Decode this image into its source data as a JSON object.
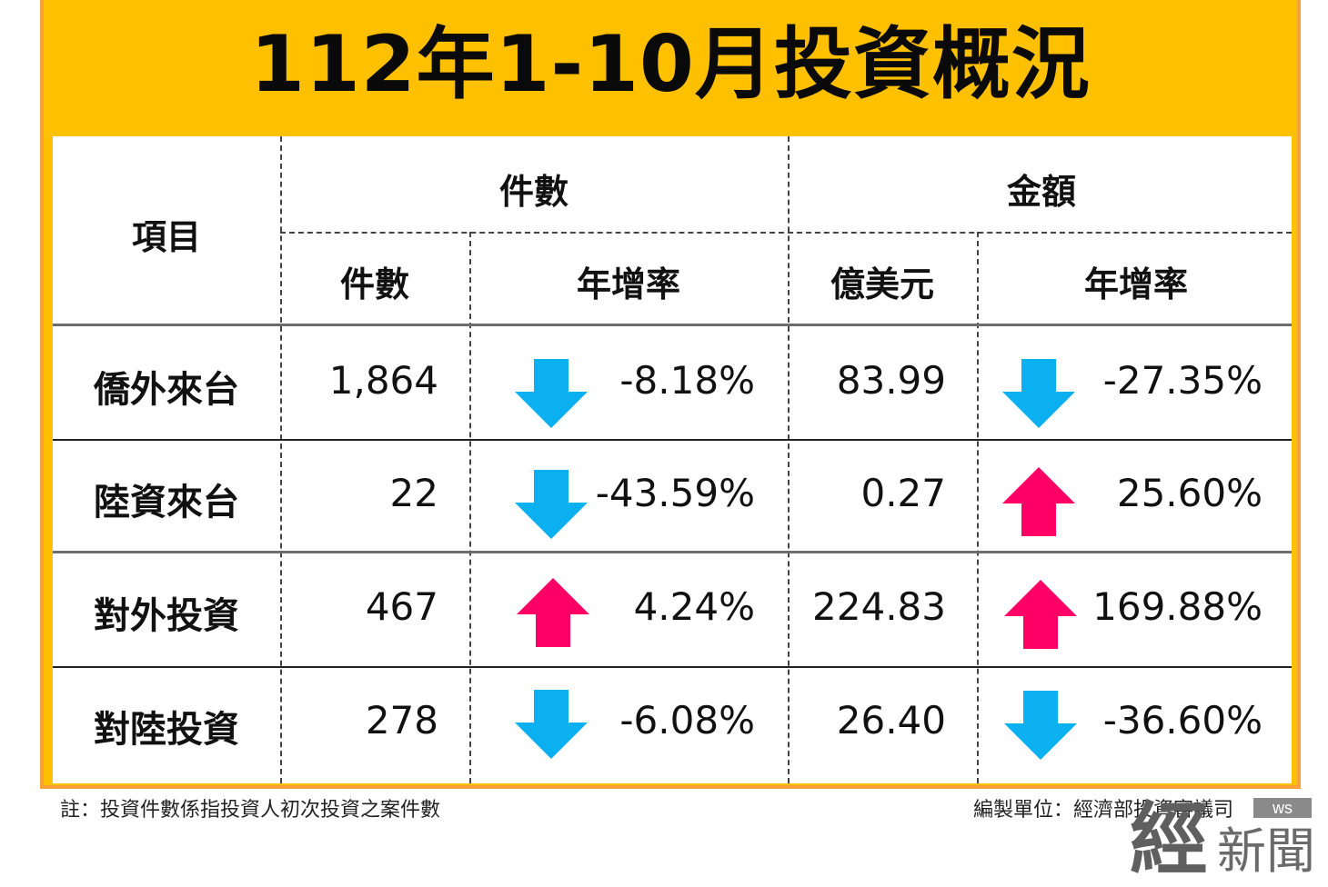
{
  "title": "112年1-10月投資概況",
  "header": {
    "item": "項目",
    "count_group": "件數",
    "amount_group": "金額",
    "count": "件數",
    "count_growth": "年增率",
    "amount": "億美元",
    "amount_growth": "年增率"
  },
  "rows": [
    {
      "label": "僑外來台",
      "count": "1,864",
      "count_growth": "-8.18%",
      "count_dir": "down",
      "amount": "83.99",
      "amount_growth": "-27.35%",
      "amount_dir": "down"
    },
    {
      "label": "陸資來台",
      "count": "22",
      "count_growth": "-43.59%",
      "count_dir": "down",
      "amount": "0.27",
      "amount_growth": "25.60%",
      "amount_dir": "up"
    },
    {
      "label": "對外投資",
      "count": "467",
      "count_growth": "4.24%",
      "count_dir": "up",
      "amount": "224.83",
      "amount_growth": "169.88%",
      "amount_dir": "up"
    },
    {
      "label": "對陸投資",
      "count": "278",
      "count_growth": "-6.08%",
      "count_dir": "down",
      "amount": "26.40",
      "amount_growth": "-36.60%",
      "amount_dir": "down"
    }
  ],
  "footnote": "註：投資件數係指投資人初次投資之案件數",
  "source": "編製單位：經濟部投資審議司",
  "logo": {
    "big": "經",
    "small": "新聞",
    "tag": "ws"
  },
  "colors": {
    "banner": "#FFC000",
    "border": "#F7A238",
    "down_arrow": "#0BB0F0",
    "up_arrow": "#FF0066"
  }
}
